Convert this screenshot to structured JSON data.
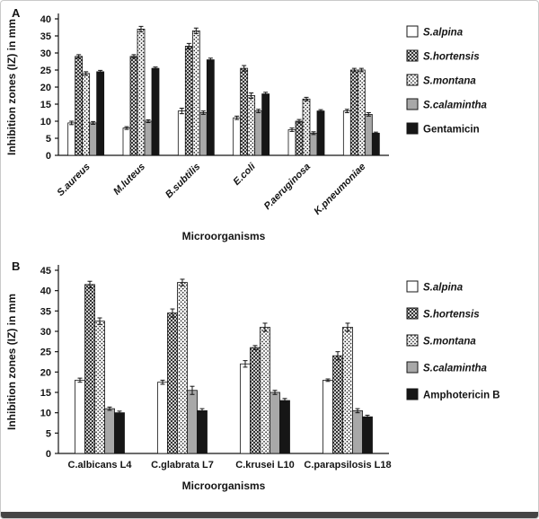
{
  "figure": {
    "panels": [
      {
        "label": "A"
      },
      {
        "label": "B"
      }
    ]
  },
  "colors": {
    "bar_black": "#161616",
    "bar_gray": "#a8a8a8",
    "bar_white": "#ffffff",
    "axis": "#141414",
    "frame_border": "#c9c9c9",
    "bottom_bar": "#454545"
  },
  "chart_data": [
    {
      "type": "bar",
      "panel": "A",
      "title": "",
      "xlabel": "Microorganisms",
      "ylabel": "Inhibition zones (IZ) in mm",
      "ylim": [
        0,
        40
      ],
      "ytick_step": 5,
      "grid": false,
      "legend_position": "right",
      "error_bars": true,
      "categories": [
        "S.aureus",
        "M.luteus",
        "B.subtilis",
        "E.coli",
        "P.aeruginosa",
        "K.pneumoniae"
      ],
      "series": [
        {
          "name": "S.alpina",
          "style": "outline",
          "italic": true,
          "values": [
            9.5,
            8,
            13,
            11,
            7.5,
            13
          ],
          "errors": [
            0.5,
            0.4,
            0.8,
            0.5,
            0.5,
            0.5
          ]
        },
        {
          "name": "S.hortensis",
          "style": "crosshatch",
          "italic": true,
          "values": [
            29,
            29,
            32,
            25.5,
            10,
            25
          ],
          "errors": [
            0.5,
            0.5,
            0.8,
            0.8,
            0.5,
            0.5
          ]
        },
        {
          "name": "S.montana",
          "style": "dots",
          "italic": true,
          "values": [
            24,
            37,
            36.5,
            17.5,
            16.5,
            25
          ],
          "errors": [
            0.5,
            0.8,
            0.8,
            0.8,
            0.5,
            0.5
          ]
        },
        {
          "name": "S.calamintha",
          "style": "gray",
          "italic": true,
          "values": [
            9.5,
            10,
            12.5,
            13,
            6.5,
            12
          ],
          "errors": [
            0.4,
            0.4,
            0.5,
            0.5,
            0.4,
            0.5
          ]
        },
        {
          "name": "Gentamicin",
          "style": "black",
          "italic": false,
          "values": [
            24.5,
            25.5,
            28,
            18,
            13,
            6.5
          ],
          "errors": [
            0.4,
            0.4,
            0.5,
            0.5,
            0.4,
            0.3
          ]
        }
      ]
    },
    {
      "type": "bar",
      "panel": "B",
      "title": "",
      "xlabel": "Microorganisms",
      "ylabel": "Inhibition zones (IZ) in mm",
      "ylim": [
        0,
        45
      ],
      "ytick_step": 5,
      "grid": false,
      "legend_position": "right",
      "error_bars": true,
      "categories": [
        "C.albicans L4",
        "C.glabrata L7",
        "C.krusei L10",
        "C.parapsilosis L18"
      ],
      "series": [
        {
          "name": "S.alpina",
          "style": "outline",
          "italic": true,
          "values": [
            18,
            17.5,
            22,
            18
          ],
          "errors": [
            0.5,
            0.5,
            0.8,
            0.3
          ]
        },
        {
          "name": "S.hortensis",
          "style": "crosshatch",
          "italic": true,
          "values": [
            41.5,
            34.5,
            26,
            24
          ],
          "errors": [
            0.8,
            1,
            0.5,
            1
          ]
        },
        {
          "name": "S.montana",
          "style": "dots",
          "italic": true,
          "values": [
            32.5,
            42,
            31,
            31
          ],
          "errors": [
            0.8,
            0.8,
            1,
            1
          ]
        },
        {
          "name": "S.calamintha",
          "style": "gray",
          "italic": true,
          "values": [
            11,
            15.5,
            15,
            10.5
          ],
          "errors": [
            0.4,
            1,
            0.5,
            0.5
          ]
        },
        {
          "name": "Amphotericin B",
          "style": "black",
          "italic": false,
          "values": [
            10,
            10.5,
            13,
            9
          ],
          "errors": [
            0.4,
            0.5,
            0.5,
            0.4
          ]
        }
      ]
    }
  ]
}
